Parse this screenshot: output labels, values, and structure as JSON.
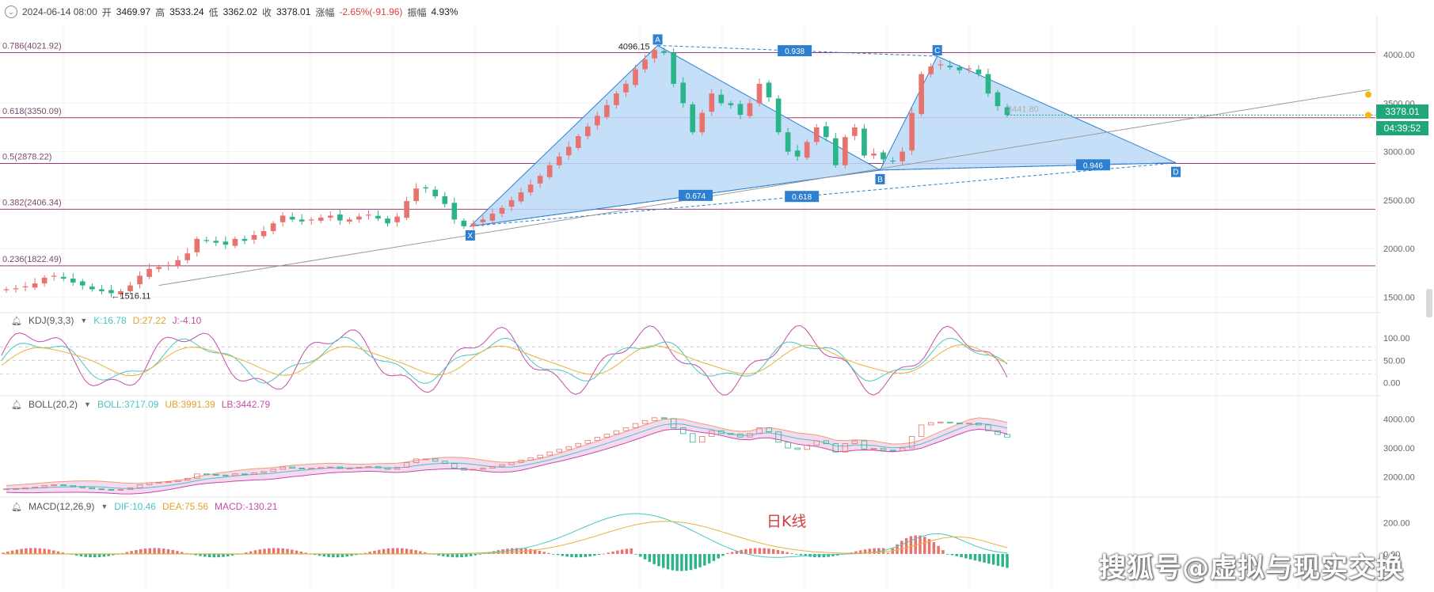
{
  "header": {
    "datetime": "2024-06-14 08:00",
    "open_label": "开",
    "open": "3469.97",
    "high_label": "高",
    "high": "3533.24",
    "low_label": "低",
    "low": "3362.02",
    "close_label": "收",
    "close": "3378.01",
    "change_label": "涨幅",
    "change": "-2.65%(-91.96)",
    "amplitude_label": "振幅",
    "amplitude": "4.93%"
  },
  "price_badge": {
    "price": "3378.01",
    "countdown": "04:39:52"
  },
  "title": "日K线",
  "watermark": "搜狐号@虚拟与现实交换",
  "colors": {
    "up": "#e8726e",
    "down": "#2bb38a",
    "pattern_fill": "#bcd9f7",
    "pattern_line": "#2d7fd0",
    "fib_line": "#9b3b7d"
  },
  "chart_data": [
    {
      "type": "candlestick",
      "panel": "price",
      "y_ticks": [
        4000,
        3500,
        3000,
        2500,
        2000,
        1500
      ],
      "y_tick_labels": [
        "4000.00",
        "3500.00",
        "3000.00",
        "2500.00",
        "2000.00",
        "1500.00"
      ],
      "ylim": [
        1380,
        4320
      ],
      "fib_levels": [
        {
          "label": "0.786(4021.92)",
          "value": 4021.92
        },
        {
          "label": "0.618(3350.09)",
          "value": 3350.09
        },
        {
          "label": "0.5(2878.22)",
          "value": 2878.22
        },
        {
          "label": "0.382(2406.34)",
          "value": 2406.34
        },
        {
          "label": "0.236(1822.49)",
          "value": 1822.49
        }
      ],
      "annotations": [
        {
          "text": "4096.15",
          "value": 4096.15
        },
        {
          "text": "1516.11",
          "value": 1516.11
        },
        {
          "text": "3441.80",
          "value": 3441.8
        }
      ],
      "harmonic_points": [
        {
          "label": "X",
          "value": 2230
        },
        {
          "label": "A",
          "value": 4096.15
        },
        {
          "label": "B",
          "value": 2810
        },
        {
          "label": "C",
          "value": 3985
        },
        {
          "label": "D",
          "value": 2885
        }
      ],
      "ratios": [
        "0.938",
        "0.674",
        "0.946",
        "0.618"
      ],
      "close_series": [
        1580,
        1590,
        1610,
        1640,
        1700,
        1720,
        1690,
        1650,
        1620,
        1580,
        1560,
        1540,
        1560,
        1620,
        1720,
        1790,
        1810,
        1830,
        1880,
        1950,
        2100,
        2080,
        2060,
        2040,
        2100,
        2080,
        2140,
        2180,
        2260,
        2340,
        2300,
        2280,
        2300,
        2320,
        2340,
        2290,
        2300,
        2330,
        2350,
        2310,
        2260,
        2330,
        2490,
        2620,
        2620,
        2540,
        2460,
        2300,
        2230,
        2260,
        2300,
        2360,
        2420,
        2500,
        2580,
        2660,
        2750,
        2860,
        2950,
        3050,
        3160,
        3260,
        3370,
        3480,
        3600,
        3700,
        3850,
        3950,
        4050,
        4020,
        3700,
        3500,
        3200,
        3400,
        3600,
        3500,
        3480,
        3380,
        3500,
        3700,
        3560,
        3200,
        3000,
        2950,
        3100,
        3250,
        3150,
        2860,
        3150,
        3250,
        2960,
        2980,
        2920,
        2900,
        3000,
        3400,
        3800,
        3880,
        3900,
        3870,
        3840,
        3860,
        3800,
        3600,
        3470,
        3378
      ],
      "last_close": 3378.01
    },
    {
      "type": "line",
      "panel": "KDJ",
      "label": "KDJ(9,3,3)",
      "values_text": {
        "k": "K:16.78",
        "d": "D:27.22",
        "j": "J:-4.10"
      },
      "y_ticks": [
        "100.00",
        "50.00",
        "0.00"
      ],
      "series_colors": {
        "k": "#49c6c2",
        "d": "#e8b23a",
        "j": "#c24ea8"
      },
      "ylim": [
        -20,
        130
      ]
    },
    {
      "type": "line",
      "panel": "BOLL",
      "label": "BOLL(20,2)",
      "values_text": {
        "mid": "BOLL:3717.09",
        "ub": "UB:3991.39",
        "lb": "LB:3442.79"
      },
      "y_ticks": [
        "4000.00",
        "3000.00",
        "2000.00"
      ],
      "ylim": [
        1380,
        4320
      ]
    },
    {
      "type": "bar",
      "panel": "MACD",
      "label": "MACD(12,26,9)",
      "values_text": {
        "dif": "DIF:10.46",
        "dea": "DEA:75.56",
        "macd": "MACD:-130.21"
      },
      "y_ticks": [
        "200.00",
        "0.00"
      ],
      "ylim": [
        -230,
        280
      ]
    }
  ]
}
